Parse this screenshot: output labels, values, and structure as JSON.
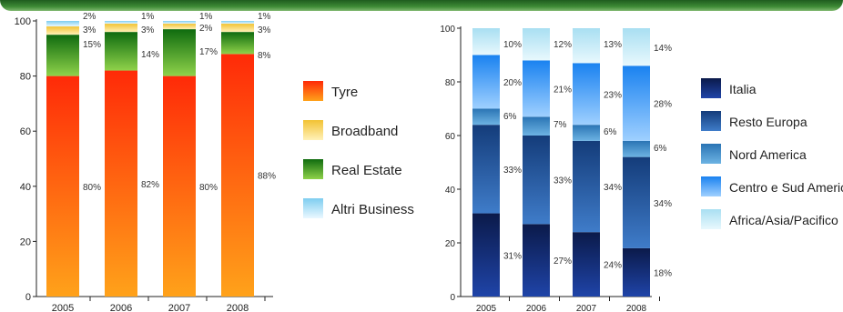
{
  "chart_data": [
    {
      "type": "bar",
      "stacked": true,
      "categories": [
        "2005",
        "2006",
        "2007",
        "2008"
      ],
      "ylim": [
        0,
        100
      ],
      "yticks": [
        "0",
        "20",
        "40",
        "60",
        "80",
        "100"
      ],
      "series": [
        {
          "name": "Tyre",
          "values": [
            80,
            82,
            80,
            88
          ],
          "labels": [
            "80%",
            "82%",
            "80%",
            "88%"
          ],
          "colors": [
            "#ff2a08",
            "#ffa21a"
          ]
        },
        {
          "name": "Real Estate",
          "values": [
            15,
            14,
            17,
            8
          ],
          "labels": [
            "15%",
            "14%",
            "17%",
            "8%"
          ],
          "colors": [
            "#0f6b0f",
            "#8fd24a"
          ]
        },
        {
          "name": "Broadband",
          "values": [
            3,
            3,
            2,
            3
          ],
          "labels": [
            "3%",
            "3%",
            "2%",
            "3%"
          ],
          "colors": [
            "#f2c233",
            "#fff1b8"
          ]
        },
        {
          "name": "Altri Business",
          "values": [
            2,
            1,
            1,
            1
          ],
          "labels": [
            "2%",
            "1%",
            "1%",
            "1%"
          ],
          "colors": [
            "#7ecdf0",
            "#eaf8ff"
          ]
        }
      ],
      "legend": [
        "Tyre",
        "Broadband",
        "Real Estate",
        "Altri Business"
      ],
      "legend_position": "right"
    },
    {
      "type": "bar",
      "stacked": true,
      "categories": [
        "2005",
        "2006",
        "2007",
        "2008"
      ],
      "ylim": [
        0,
        100
      ],
      "yticks": [
        "0",
        "20",
        "40",
        "60",
        "80",
        "100"
      ],
      "series": [
        {
          "name": "Italia",
          "values": [
            31,
            27,
            24,
            18
          ],
          "labels": [
            "31%",
            "27%",
            "24%",
            "18%"
          ],
          "colors": [
            "#0b1a4a",
            "#1f44a8"
          ]
        },
        {
          "name": "Resto Europa",
          "values": [
            33,
            33,
            34,
            34
          ],
          "labels": [
            "33%",
            "33%",
            "34%",
            "34%"
          ],
          "colors": [
            "#143c7a",
            "#3f7cc9"
          ]
        },
        {
          "name": "Nord America",
          "values": [
            6,
            7,
            6,
            6
          ],
          "labels": [
            "6%",
            "7%",
            "6%",
            "6%"
          ],
          "colors": [
            "#2a74b4",
            "#6db3e3"
          ]
        },
        {
          "name": "Centro e Sud America",
          "values": [
            20,
            21,
            23,
            28
          ],
          "labels": [
            "20%",
            "21%",
            "23%",
            "28%"
          ],
          "colors": [
            "#1a82f0",
            "#9fd0ff"
          ]
        },
        {
          "name": "Africa/Asia/Pacifico",
          "values": [
            10,
            12,
            13,
            14
          ],
          "labels": [
            "10%",
            "12%",
            "13%",
            "14%"
          ],
          "colors": [
            "#a9dff2",
            "#e8f8fd"
          ]
        }
      ],
      "legend": [
        "Italia",
        "Resto Europa",
        "Nord America",
        "Centro e Sud America",
        "Africa/Asia/Pacifico"
      ],
      "legend_position": "right"
    }
  ]
}
